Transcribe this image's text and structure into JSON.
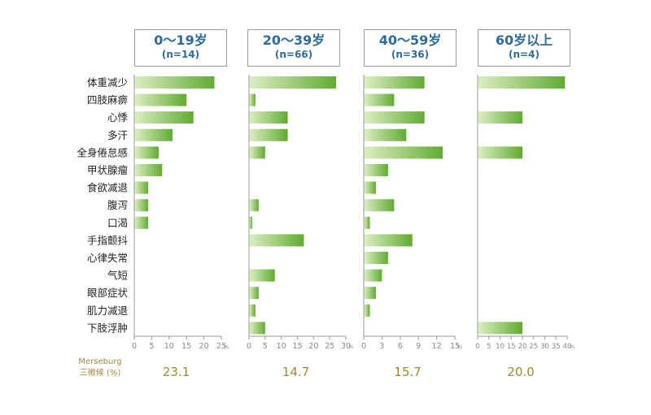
{
  "chart_data": {
    "type": "bar",
    "orientation": "horizontal",
    "categories": [
      "体重减少",
      "四肢麻痹",
      "心悸",
      "多汗",
      "全身倦怠感",
      "甲状腺瘤",
      "食欲减退",
      "腹泻",
      "口渴",
      "手指颤抖",
      "心律失常",
      "气短",
      "眼部症状",
      "肌力减退",
      "下肢浮肿"
    ],
    "axis_unit": "%",
    "panels": [
      {
        "age": "0～19岁",
        "n": "(n=14)",
        "xlim": [
          0,
          25
        ],
        "ticks": [
          "0",
          "5",
          "10",
          "15",
          "20",
          "25"
        ],
        "values": [
          23,
          15,
          17,
          11,
          7,
          8,
          4,
          4,
          4,
          0,
          0,
          0,
          0,
          0,
          0
        ],
        "merseburg": "23.1"
      },
      {
        "age": "20～39岁",
        "n": "(n=66)",
        "xlim": [
          0,
          30
        ],
        "ticks": [
          "0",
          "5",
          "10",
          "15",
          "20",
          "25",
          "30"
        ],
        "values": [
          27,
          2,
          12,
          12,
          5,
          0,
          0,
          3,
          1,
          17,
          0,
          8,
          3,
          2,
          5
        ],
        "merseburg": "14.7"
      },
      {
        "age": "40～59岁",
        "n": "(n=36)",
        "xlim": [
          0,
          15
        ],
        "ticks": [
          "0",
          "3",
          "6",
          "9",
          "12",
          "15"
        ],
        "values": [
          10,
          5,
          10,
          7,
          13,
          4,
          2,
          5,
          1,
          8,
          4,
          3,
          2,
          1,
          0
        ],
        "merseburg": "15.7"
      },
      {
        "age": "60岁以上",
        "n": "(n=4)",
        "xlim": [
          0,
          40
        ],
        "ticks": [
          "0",
          "5",
          "10",
          "15",
          "20",
          "25",
          "30",
          "35",
          "40"
        ],
        "values": [
          39,
          0,
          20,
          0,
          20,
          0,
          0,
          0,
          0,
          0,
          0,
          0,
          0,
          0,
          20
        ],
        "merseburg": "20.0"
      }
    ],
    "footer_label": [
      "Merseburg",
      "三徵候 (%)"
    ],
    "colors": {
      "bar_light": "#dceec2",
      "bar_dark": "#62ab33",
      "axis": "#9a9a9a",
      "label": "#222222",
      "header_text": "#2d6b9a",
      "footer_value": "#9e8a35"
    }
  }
}
